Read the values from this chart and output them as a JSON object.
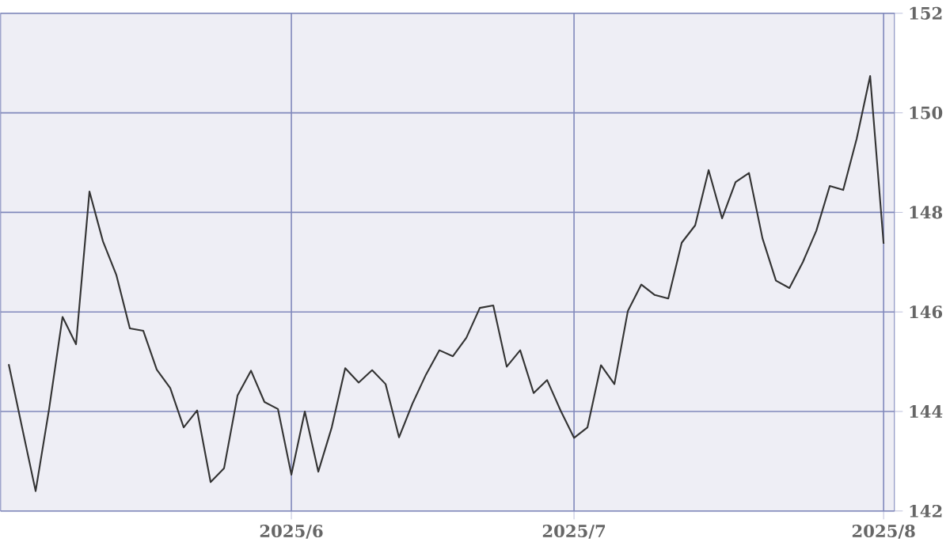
{
  "chart_data": {
    "type": "line",
    "categories": [
      null,
      null,
      null,
      null,
      null,
      null,
      null,
      null,
      null,
      null,
      null,
      null,
      null,
      null,
      null,
      null,
      null,
      null,
      null,
      null,
      null,
      "2025/6",
      null,
      null,
      null,
      null,
      null,
      null,
      null,
      null,
      null,
      null,
      null,
      null,
      null,
      null,
      null,
      null,
      null,
      null,
      null,
      null,
      "2025/7",
      null,
      null,
      null,
      null,
      null,
      null,
      null,
      null,
      null,
      null,
      null,
      null,
      null,
      null,
      null,
      null,
      null,
      null,
      null,
      null,
      null,
      null,
      "2025/8"
    ],
    "values": [
      144.95,
      143.67,
      142.4,
      144.05,
      145.9,
      145.35,
      148.42,
      147.42,
      146.74,
      145.67,
      145.62,
      144.84,
      144.47,
      143.68,
      144.02,
      142.58,
      142.86,
      144.32,
      144.82,
      144.19,
      144.05,
      142.73,
      144.0,
      142.79,
      143.68,
      144.87,
      144.58,
      144.83,
      144.55,
      143.48,
      144.16,
      144.74,
      145.23,
      145.11,
      145.48,
      146.08,
      146.13,
      144.9,
      145.23,
      144.37,
      144.63,
      144.02,
      143.47,
      143.68,
      144.93,
      144.55,
      146.02,
      146.55,
      146.34,
      146.27,
      147.39,
      147.74,
      148.85,
      147.88,
      148.61,
      148.79,
      147.48,
      146.63,
      146.48,
      147.0,
      147.63,
      148.53,
      148.45,
      149.48,
      150.74,
      147.37
    ],
    "color": "#333333",
    "ylim": [
      142,
      152
    ],
    "yticks": [
      142,
      144,
      146,
      148,
      150,
      152
    ],
    "grid": true,
    "marker": "none",
    "line_style": "solid"
  }
}
